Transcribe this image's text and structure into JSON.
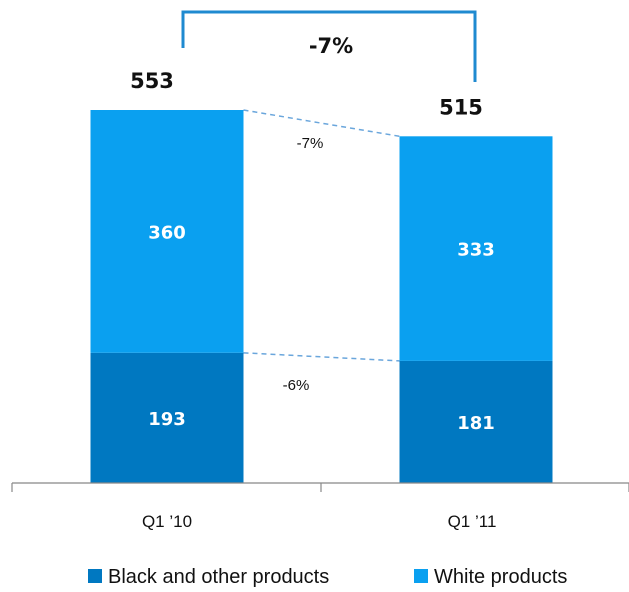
{
  "chart_data": {
    "type": "bar",
    "stacked": true,
    "categories": [
      "Q1 ’10",
      "Q1 ’11"
    ],
    "series": [
      {
        "name": "Black and other products",
        "values": [
          193,
          181
        ],
        "color": "#0078c1"
      },
      {
        "name": "White products",
        "values": [
          360,
          333
        ],
        "color": "#0aa0f0"
      }
    ],
    "totals": [
      553,
      515
    ],
    "total_change": "-7%",
    "segment_changes": [
      {
        "series": "White products",
        "change": "-7%"
      },
      {
        "series": "Black and other products",
        "change": "-6%"
      }
    ],
    "legend_position": "bottom",
    "grid": false,
    "ylim": [
      0,
      553
    ],
    "bracket_color": "#1f8ad0",
    "connector_color": "#6aa6dc",
    "axis_color": "#888888"
  }
}
